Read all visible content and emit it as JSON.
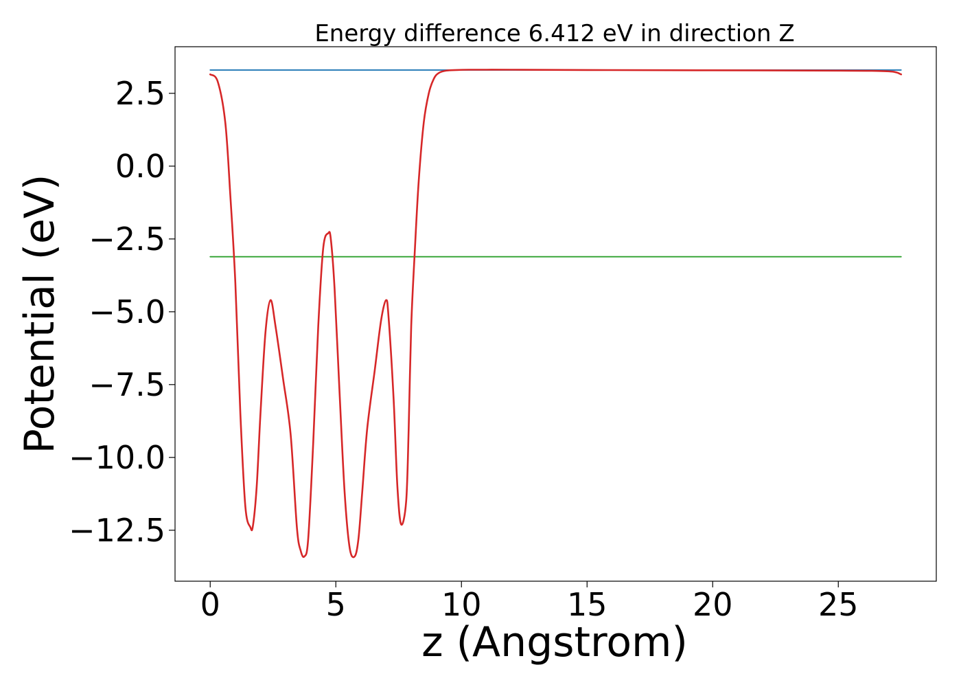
{
  "chart_data": {
    "type": "line",
    "title": "Energy difference 6.412 eV in direction Z",
    "xlabel": "z (Angstrom)",
    "ylabel": "Potential (eV)",
    "xlim": [
      -1.4,
      28.9
    ],
    "ylim": [
      -14.25,
      4.1
    ],
    "x_ticks": [
      0,
      5,
      10,
      15,
      20,
      25
    ],
    "x_tick_labels": [
      "0",
      "5",
      "10",
      "15",
      "20",
      "25"
    ],
    "y_ticks": [
      2.5,
      0.0,
      -2.5,
      -5.0,
      -7.5,
      -10.0,
      -12.5
    ],
    "y_tick_labels": [
      "2.5",
      "0.0",
      "−2.5",
      "−5.0",
      "−7.5",
      "−10.0",
      "−12.5"
    ],
    "grid": false,
    "legend": "none",
    "series": [
      {
        "color": "#1f77b4",
        "x": [
          0,
          27.5
        ],
        "y": [
          3.3,
          3.3
        ]
      },
      {
        "color": "#2ca02c",
        "x": [
          0,
          27.5
        ],
        "y": [
          -3.11,
          -3.11
        ]
      },
      {
        "color": "#d62728",
        "x": [
          0,
          0.3,
          0.6,
          0.8,
          1.0,
          1.2,
          1.4,
          1.6,
          1.7,
          1.85,
          2.0,
          2.2,
          2.4,
          2.6,
          2.9,
          3.2,
          3.45,
          3.6,
          3.75,
          3.9,
          4.1,
          4.3,
          4.5,
          4.7,
          4.8,
          4.95,
          5.15,
          5.35,
          5.55,
          5.75,
          5.9,
          6.05,
          6.25,
          6.55,
          6.8,
          7.0,
          7.1,
          7.3,
          7.45,
          7.6,
          7.8,
          7.9,
          8.0,
          8.15,
          8.3,
          8.5,
          8.7,
          8.9,
          9.1,
          9.4,
          9.8,
          10.3,
          11,
          12,
          15,
          20,
          25,
          26.5,
          27.2,
          27.5
        ],
        "y": [
          3.15,
          2.9,
          1.5,
          -1.0,
          -4.0,
          -8.5,
          -11.7,
          -12.4,
          -12.35,
          -11.0,
          -8.5,
          -5.7,
          -4.6,
          -5.5,
          -7.3,
          -9.2,
          -12.4,
          -13.2,
          -13.4,
          -12.8,
          -9.5,
          -5.5,
          -2.8,
          -2.3,
          -2.5,
          -4.2,
          -7.8,
          -11.2,
          -13.1,
          -13.4,
          -12.8,
          -11.2,
          -9.0,
          -7.0,
          -5.3,
          -4.6,
          -5.2,
          -8.0,
          -11.0,
          -12.3,
          -11.5,
          -9.0,
          -5.5,
          -2.8,
          -0.5,
          1.5,
          2.5,
          3.0,
          3.2,
          3.28,
          3.3,
          3.31,
          3.31,
          3.31,
          3.3,
          3.29,
          3.28,
          3.27,
          3.24,
          3.15
        ]
      }
    ]
  }
}
